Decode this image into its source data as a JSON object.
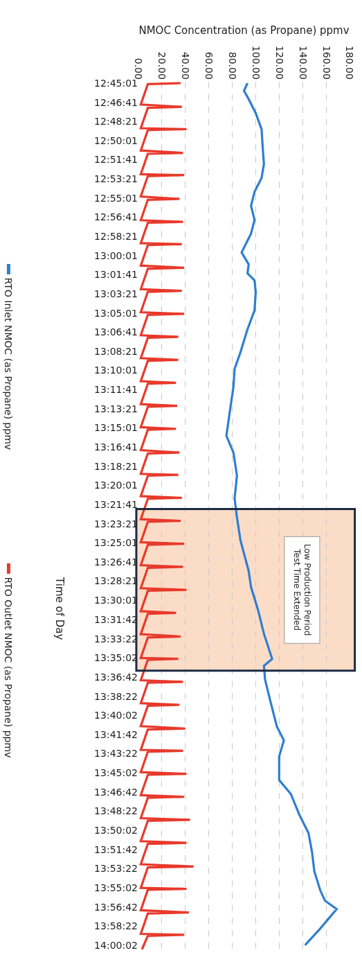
{
  "chart_data": {
    "type": "line",
    "orientation": "horizontal",
    "xlabel": "NMOC Concentration (as Propane) ppmv",
    "ylabel": "Time of Day",
    "xlim": [
      0,
      180
    ],
    "xticks": [
      {
        "value": 0,
        "label": "0.00"
      },
      {
        "value": 20,
        "label": "20.00"
      },
      {
        "value": 40,
        "label": "40.00"
      },
      {
        "value": 60,
        "label": "60.00"
      },
      {
        "value": 80,
        "label": "80.00"
      },
      {
        "value": 100,
        "label": "100.00"
      },
      {
        "value": 120,
        "label": "120.00"
      },
      {
        "value": 140,
        "label": "140.00"
      },
      {
        "value": 160,
        "label": "160.00"
      },
      {
        "value": 180,
        "label": "180.00"
      }
    ],
    "ylim": [
      14.0067,
      12.7483
    ],
    "yticks": [
      {
        "value": 12.75028,
        "label": "12:45:01"
      },
      {
        "value": 12.77806,
        "label": "12:46:41"
      },
      {
        "value": 12.80583,
        "label": "12:48:21"
      },
      {
        "value": 12.83361,
        "label": "12:50:01"
      },
      {
        "value": 12.86139,
        "label": "12:51:41"
      },
      {
        "value": 12.88917,
        "label": "12:53:21"
      },
      {
        "value": 12.91694,
        "label": "12:55:01"
      },
      {
        "value": 12.94472,
        "label": "12:56:41"
      },
      {
        "value": 12.9725,
        "label": "12:58:21"
      },
      {
        "value": 13.00028,
        "label": "13:00:01"
      },
      {
        "value": 13.02806,
        "label": "13:01:41"
      },
      {
        "value": 13.05583,
        "label": "13:03:21"
      },
      {
        "value": 13.08361,
        "label": "13:05:01"
      },
      {
        "value": 13.11139,
        "label": "13:06:41"
      },
      {
        "value": 13.13917,
        "label": "13:08:21"
      },
      {
        "value": 13.16694,
        "label": "13:10:01"
      },
      {
        "value": 13.19472,
        "label": "13:11:41"
      },
      {
        "value": 13.2225,
        "label": "13:13:21"
      },
      {
        "value": 13.25028,
        "label": "13:15:01"
      },
      {
        "value": 13.27806,
        "label": "13:16:41"
      },
      {
        "value": 13.30583,
        "label": "13:18:21"
      },
      {
        "value": 13.33361,
        "label": "13:20:01"
      },
      {
        "value": 13.36139,
        "label": "13:21:41"
      },
      {
        "value": 13.38917,
        "label": "13:23:21"
      },
      {
        "value": 13.41694,
        "label": "13:25:01"
      },
      {
        "value": 13.44472,
        "label": "13:26:41"
      },
      {
        "value": 13.4725,
        "label": "13:28:21"
      },
      {
        "value": 13.50028,
        "label": "13:30:01"
      },
      {
        "value": 13.52833,
        "label": "13:31:42"
      },
      {
        "value": 13.55611,
        "label": "13:33:22"
      },
      {
        "value": 13.58389,
        "label": "13:35:02"
      },
      {
        "value": 13.61167,
        "label": "13:36:42"
      },
      {
        "value": 13.63944,
        "label": "13:38:22"
      },
      {
        "value": 13.66722,
        "label": "13:40:02"
      },
      {
        "value": 13.695,
        "label": "13:41:42"
      },
      {
        "value": 13.72278,
        "label": "13:43:22"
      },
      {
        "value": 13.75056,
        "label": "13:45:02"
      },
      {
        "value": 13.77833,
        "label": "13:46:42"
      },
      {
        "value": 13.80611,
        "label": "13:48:22"
      },
      {
        "value": 13.83389,
        "label": "13:50:02"
      },
      {
        "value": 13.86167,
        "label": "13:51:42"
      },
      {
        "value": 13.88944,
        "label": "13:53:22"
      },
      {
        "value": 13.91722,
        "label": "13:55:02"
      },
      {
        "value": 13.945,
        "label": "13:56:42"
      },
      {
        "value": 13.97278,
        "label": "13:58:22"
      },
      {
        "value": 14.00056,
        "label": "14:00:02"
      }
    ],
    "grid": "x",
    "legend": "left",
    "bands": [
      {
        "axis": "y",
        "from": 13.3679,
        "to": 13.6024,
        "label": "Low Production Period\nTest Time Extended",
        "color": "#f4a46c"
      }
    ],
    "series": [
      {
        "name": "RTO Inlet NMOC (as Propane) ppmv",
        "color": "#2e7fcf",
        "x": [
          12.7503,
          12.7614,
          12.7735,
          12.7937,
          12.817,
          12.8443,
          12.8675,
          12.8878,
          12.908,
          12.9282,
          12.9484,
          12.9686,
          12.9888,
          12.9959,
          13.0131,
          13.0262,
          13.0363,
          13.0535,
          13.0798,
          13.1071,
          13.1405,
          13.1647,
          13.191,
          13.2254,
          13.2617,
          13.286,
          13.3194,
          13.3527,
          13.38,
          13.4134,
          13.4578,
          13.4811,
          13.5144,
          13.5488,
          13.5852,
          13.5953,
          13.6155,
          13.6499,
          13.6833,
          13.7035,
          13.7267,
          13.7611,
          13.7813,
          13.8106,
          13.8379,
          13.8652,
          13.8935,
          13.9208,
          13.9359,
          13.9481,
          13.9764,
          14.0006
        ],
        "values": [
          93,
          90,
          94,
          100,
          105,
          106,
          107,
          105,
          99,
          96,
          99,
          96,
          90,
          88,
          94,
          93,
          99,
          100,
          99,
          93,
          87,
          82,
          81,
          78,
          75,
          81,
          84,
          82,
          84,
          87,
          94,
          96,
          102,
          107,
          114,
          107,
          108,
          113,
          118,
          124,
          120,
          120,
          130,
          137,
          145,
          148,
          150,
          155,
          159,
          169,
          155,
          142
        ]
      },
      {
        "name": "RTO Outlet NMOC (as Propane) ppmv",
        "color": "#e8392b",
        "x": [
          12.7503,
          12.7517,
          12.7813,
          12.7847,
          12.7861,
          12.8157,
          12.817,
          12.8184,
          12.848,
          12.8514,
          12.8528,
          12.8824,
          12.8837,
          12.8851,
          12.9147,
          12.9181,
          12.9195,
          12.9491,
          12.9514,
          12.9528,
          12.9824,
          12.9838,
          12.9852,
          13.0148,
          13.0181,
          13.0195,
          13.0491,
          13.0515,
          13.0529,
          13.0825,
          13.0849,
          13.0863,
          13.1159,
          13.1182,
          13.1196,
          13.1492,
          13.1516,
          13.153,
          13.1826,
          13.1849,
          13.1863,
          13.2159,
          13.2183,
          13.2197,
          13.2493,
          13.2516,
          13.253,
          13.2826,
          13.286,
          13.2874,
          13.317,
          13.3183,
          13.3197,
          13.3493,
          13.3517,
          13.3531,
          13.3827,
          13.3851,
          13.3865,
          13.4161,
          13.4184,
          13.4198,
          13.4494,
          13.4518,
          13.4532,
          13.4828,
          13.4851,
          13.4865,
          13.5161,
          13.5185,
          13.5199,
          13.5495,
          13.5529,
          13.5543,
          13.5839,
          13.5852,
          13.5866,
          13.6162,
          13.6186,
          13.62,
          13.6496,
          13.6519,
          13.6533,
          13.6829,
          13.6863,
          13.6877,
          13.7173,
          13.7186,
          13.72,
          13.7496,
          13.752,
          13.7534,
          13.783,
          13.7853,
          13.7867,
          13.8163,
          13.8187,
          13.8201,
          13.8497,
          13.8521,
          13.8535,
          13.8831,
          13.8864,
          13.8878,
          13.9174,
          13.9188,
          13.9202,
          13.9498,
          13.9531,
          13.9545,
          13.9841,
          13.9855,
          13.9869,
          14.0067
        ],
        "values": [
          36,
          8,
          2,
          37,
          8,
          2,
          41,
          8,
          2,
          38,
          8,
          2,
          39,
          8,
          2,
          35,
          8,
          2,
          38,
          8,
          2,
          37,
          8,
          2,
          39,
          8,
          2,
          37,
          8,
          2,
          39,
          8,
          2,
          34,
          8,
          2,
          34,
          8,
          2,
          32,
          8,
          2,
          33,
          8,
          2,
          32,
          8,
          2,
          35,
          8,
          2,
          34,
          8,
          2,
          37,
          8,
          2,
          36,
          8,
          2,
          39,
          8,
          2,
          38,
          8,
          2,
          41,
          8,
          2,
          32,
          8,
          2,
          36,
          8,
          2,
          34,
          8,
          2,
          38,
          8,
          2,
          35,
          8,
          2,
          40,
          8,
          2,
          38,
          8,
          2,
          41,
          8,
          2,
          39,
          8,
          2,
          44,
          8,
          2,
          41,
          8,
          2,
          47,
          8,
          2,
          41,
          8,
          2,
          43,
          8,
          2,
          39,
          8,
          3
        ]
      }
    ]
  }
}
